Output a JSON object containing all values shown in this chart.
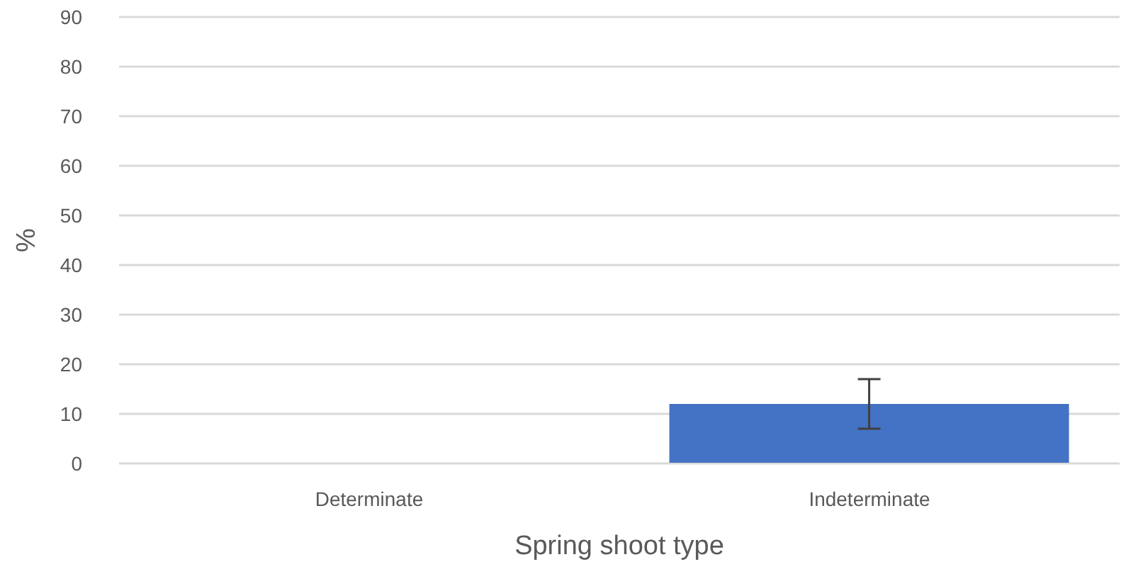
{
  "chart_data": {
    "type": "bar",
    "xlabel": "Spring shoot type",
    "ylabel": "%",
    "categories": [
      "Determinate",
      "Indeterminate"
    ],
    "values": [
      0,
      12
    ],
    "errors": [
      null,
      5
    ],
    "color": "#4472c4",
    "ylim": [
      0,
      90
    ],
    "yticks": [
      0,
      10,
      20,
      30,
      40,
      50,
      60,
      70,
      80,
      90
    ],
    "grid": "y"
  }
}
